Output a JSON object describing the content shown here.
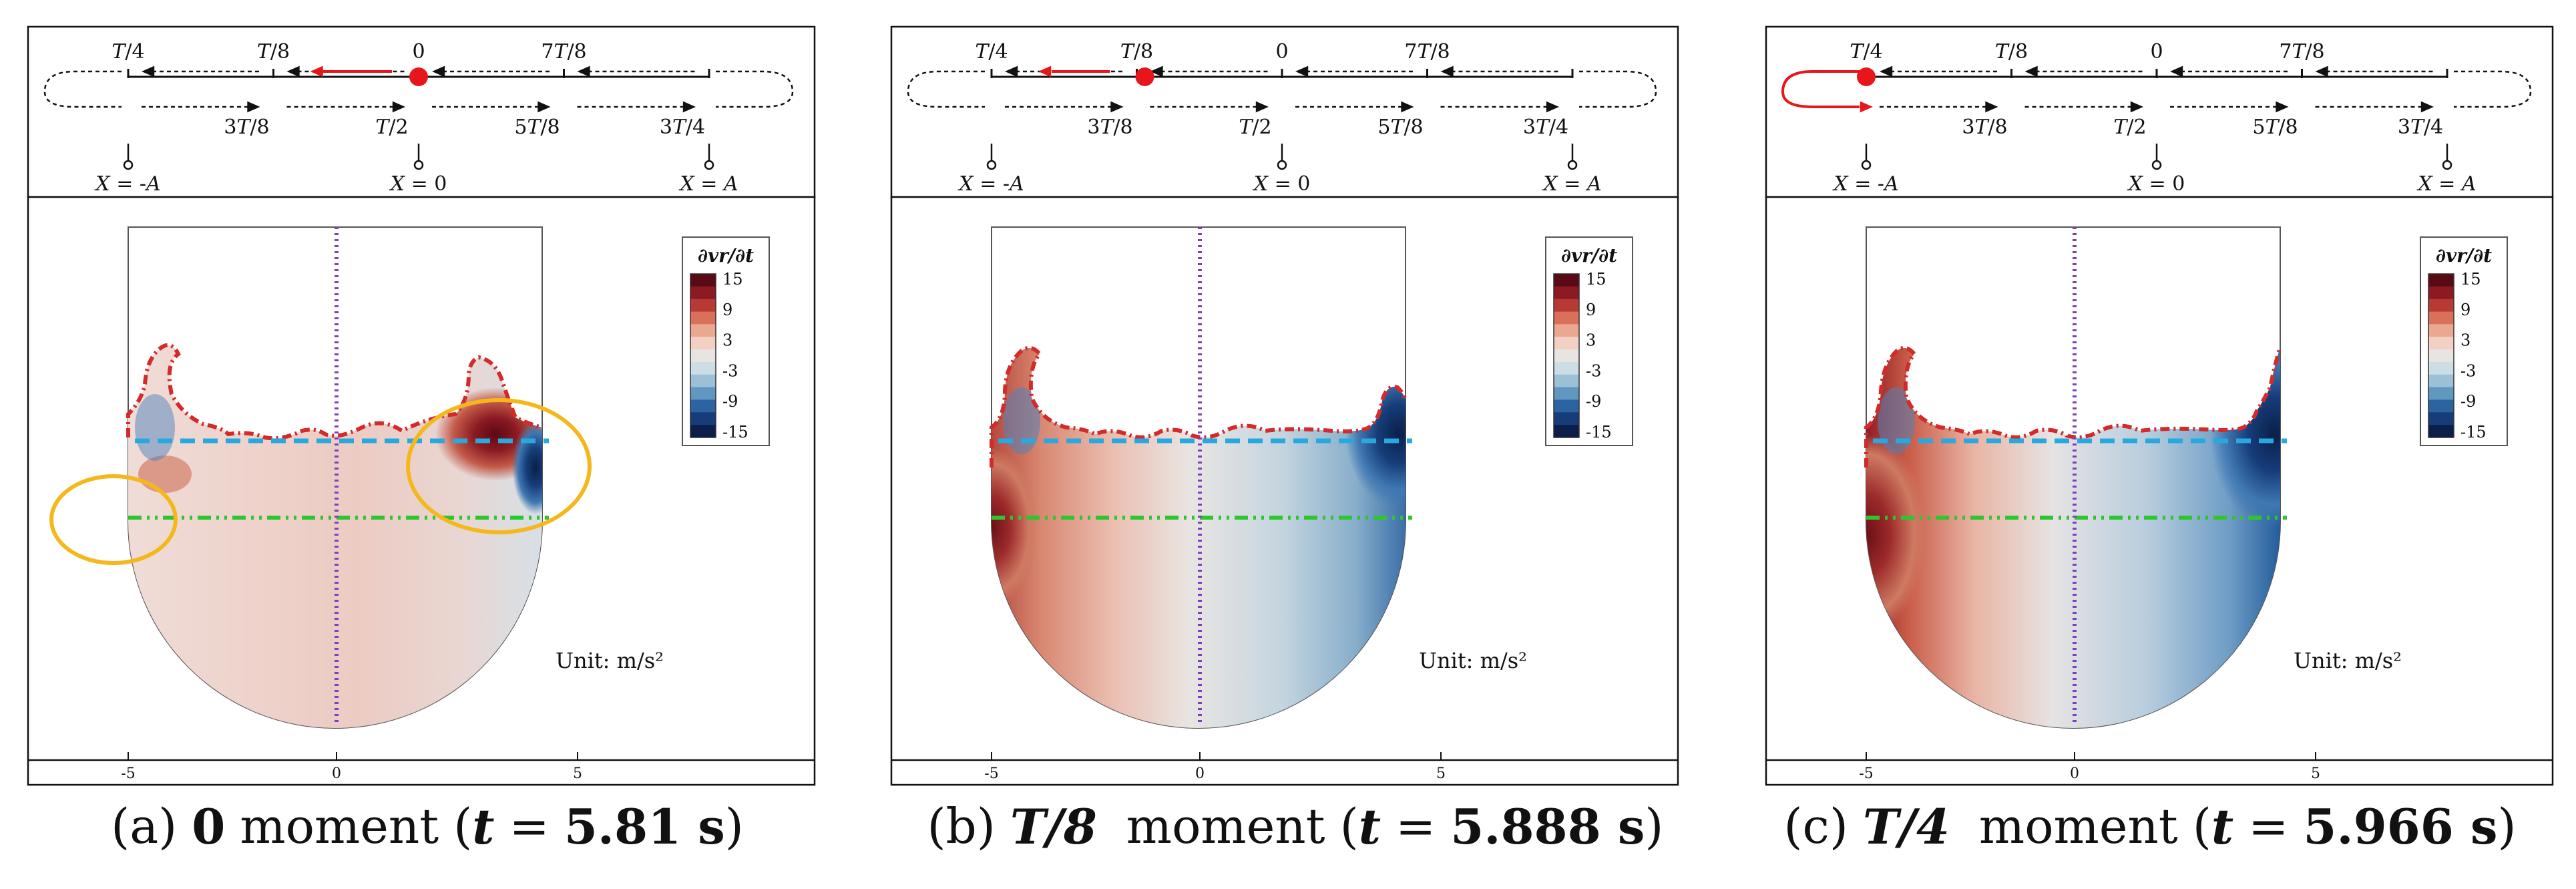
{
  "panels": [
    {
      "id": "a",
      "caption": {
        "letter": "(a)",
        "phase": "0",
        "moment": "moment",
        "time_open": "(",
        "t_sym": "t",
        "eq": "=",
        "time_value": "5.81 s",
        "time_close": ")"
      },
      "red_dot_position": "0",
      "red_arrow": "between T/8 and 0",
      "highlight_ellipses": true
    },
    {
      "id": "b",
      "caption": {
        "letter": "(b)",
        "phase": "T/8",
        "moment": "moment",
        "time_open": "(",
        "t_sym": "t",
        "eq": "=",
        "time_value": "5.888 s",
        "time_close": ")"
      },
      "red_dot_position": "T/8",
      "red_arrow": "between T/4 and T/8",
      "highlight_ellipses": false
    },
    {
      "id": "c",
      "caption": {
        "letter": "(c)",
        "phase": "T/4",
        "moment": "moment",
        "time_open": "(",
        "t_sym": "t",
        "eq": "=",
        "time_value": "5.966 s",
        "time_close": ")"
      },
      "red_dot_position": "T/4",
      "red_arrow": "turning around at X = -A",
      "highlight_ellipses": false
    }
  ],
  "motion_diagram": {
    "top_labels": [
      "T/4",
      "T/8",
      "0",
      "7T/8"
    ],
    "bottom_labels": [
      "3T/8",
      "T/2",
      "5T/8",
      "3T/4"
    ],
    "positions": [
      "X = -A",
      "X = 0",
      "X = A"
    ]
  },
  "legend": {
    "title": "∂vr/∂t",
    "levels": [
      "15",
      "9",
      "3",
      "-3",
      "-9",
      "-15"
    ],
    "colors": [
      "#5a0a14",
      "#8b1a22",
      "#b83a35",
      "#d8705a",
      "#eba78f",
      "#f3d0c4",
      "#e8e4e2",
      "#ccdde6",
      "#9cc1d6",
      "#5f97bf",
      "#2c64a2",
      "#163d7a",
      "#0b1f4a"
    ]
  },
  "unit_label": "Unit: m/s²",
  "x_axis_ticks": [
    "-5",
    "0",
    "5"
  ],
  "colors": {
    "free_surface": "#d42a2a",
    "cyan_line": "#29a8e0",
    "green_line": "#2ec62e",
    "centerline": "#7b3fbf",
    "highlight": "#f4b81c",
    "marker": "#e8161b"
  }
}
